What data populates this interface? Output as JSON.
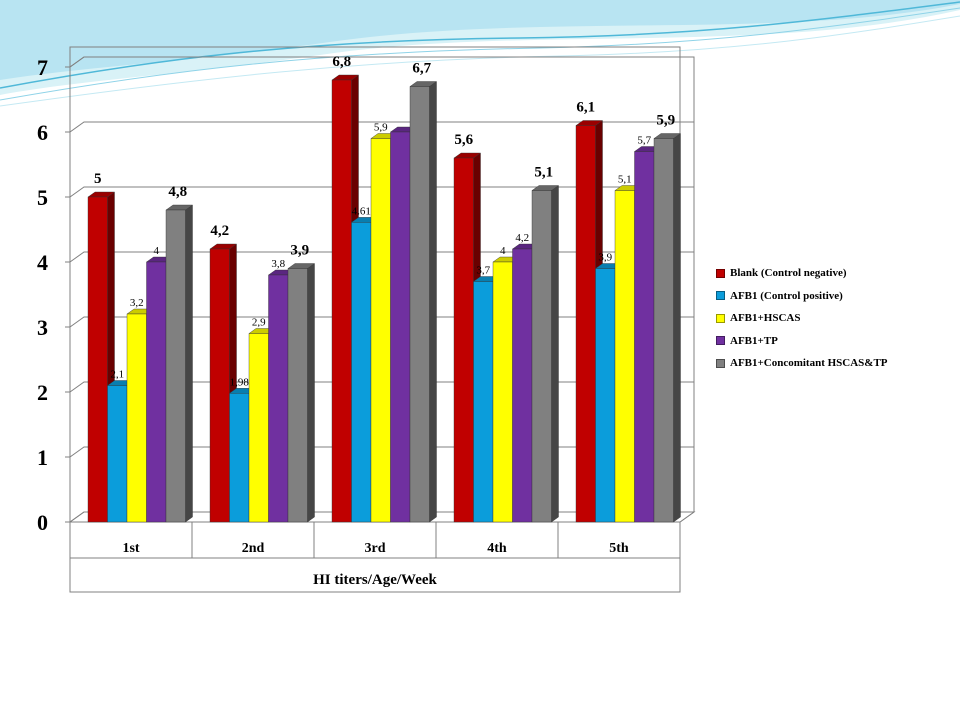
{
  "chart_data": {
    "type": "bar",
    "style": "3d-clustered",
    "categories": [
      "1st",
      "2nd",
      "3rd",
      "4th",
      "5th"
    ],
    "xlabel": "HI titers/Age/Week",
    "ylabel": "",
    "ylim": [
      0,
      7
    ],
    "yticks": [
      "0",
      "1",
      "2",
      "3",
      "4",
      "5",
      "6",
      "7"
    ],
    "grid": true,
    "legend_position": "right",
    "series": [
      {
        "name": "Blank (Control negative)",
        "color": "#c00000",
        "values": [
          5,
          4.2,
          6.8,
          5.6,
          6.1
        ],
        "labels": [
          "5",
          "4,2",
          "6,8",
          "5,6",
          "6,1"
        ]
      },
      {
        "name": "AFB1 (Control positive)",
        "color": "#0b9ddb",
        "values": [
          2.1,
          1.98,
          4.61,
          3.7,
          3.9
        ],
        "labels": [
          "2,1",
          "1,98",
          "4.61",
          "3,7",
          "3,9"
        ]
      },
      {
        "name": "AFB1+HSCAS",
        "color": "#ffff00",
        "values": [
          3.2,
          2.9,
          5.9,
          4,
          5.1
        ],
        "labels": [
          "3,2",
          "2,9",
          "5,9",
          "4",
          "5,1"
        ]
      },
      {
        "name": "AFB1+TP",
        "color": "#7030a0",
        "values": [
          4,
          3.8,
          6,
          4.2,
          5.7
        ],
        "labels": [
          "4",
          "3,8",
          "",
          "4,2",
          "5,7"
        ]
      },
      {
        "name": "AFB1+Concomitant HSCAS&TP",
        "color": "#808080",
        "values": [
          4.8,
          3.9,
          6.7,
          5.1,
          5.9
        ],
        "labels": [
          "4,8",
          "3,9",
          "6,7",
          "5,1",
          "5,9"
        ]
      }
    ]
  }
}
